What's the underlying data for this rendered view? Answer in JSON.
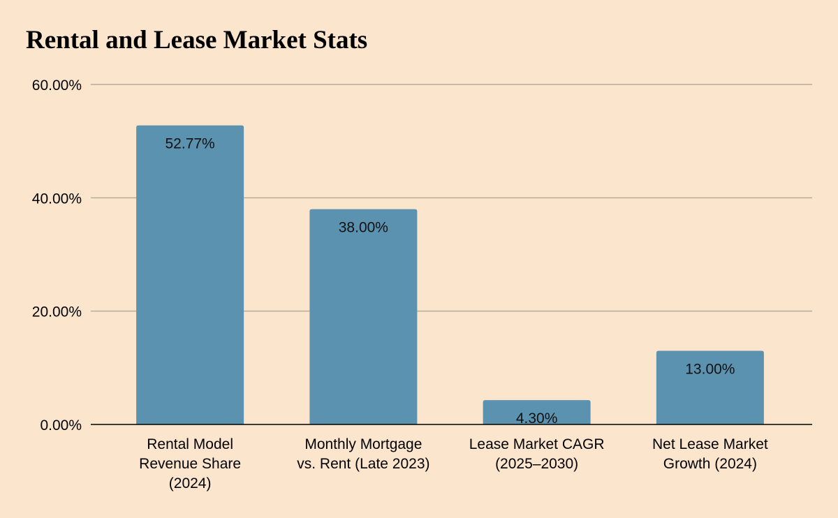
{
  "chart_data": {
    "type": "bar",
    "title": "Rental and Lease Market Stats",
    "categories": [
      [
        "Rental Model",
        "Revenue Share",
        "(2024)"
      ],
      [
        "Monthly Mortgage",
        "vs. Rent (Late 2023)"
      ],
      [
        "Lease Market CAGR",
        "(2025–2030)"
      ],
      [
        "Net Lease Market",
        "Growth (2024)"
      ]
    ],
    "values": [
      52.77,
      38.0,
      4.3,
      13.0
    ],
    "data_labels": [
      "52.77%",
      "38.00%",
      "4.30%",
      "13.00%"
    ],
    "ylim": [
      0,
      60
    ],
    "yticks": [
      0,
      20,
      40,
      60
    ],
    "ytick_labels": [
      "0.00%",
      "20.00%",
      "40.00%",
      "60.00%"
    ],
    "xlabel": "",
    "ylabel": "",
    "grid": true,
    "legend": "none",
    "bar_color": "#5b92b0",
    "grid_color": "#b8aa98",
    "axis_color": "#000000",
    "background": "#fce5cd"
  }
}
